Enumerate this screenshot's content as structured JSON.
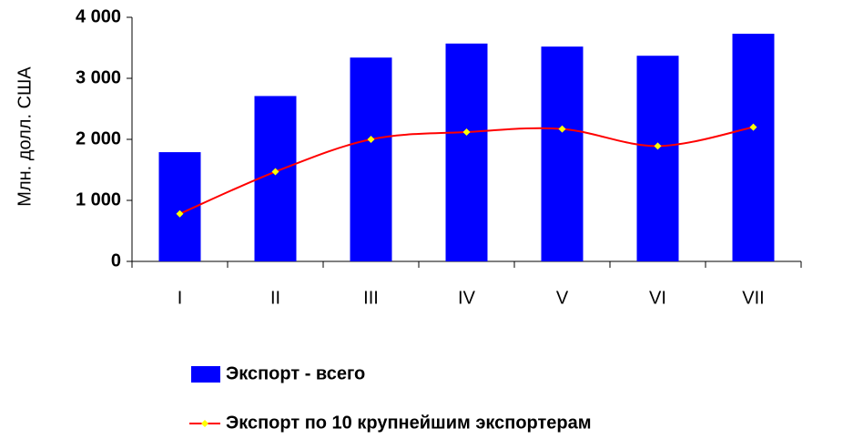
{
  "chart_data": {
    "type": "bar",
    "y_label": "Млн. долл. США",
    "categories": [
      "I",
      "II",
      "III",
      "IV",
      "V",
      "VI",
      "VII"
    ],
    "series": [
      {
        "name": "Экспорт - всего",
        "type": "bar",
        "color": "#0000ff",
        "values": [
          1790,
          2710,
          3340,
          3570,
          3520,
          3370,
          3730
        ]
      },
      {
        "name": "Экспорт по 10 крупнейшим экспортерам",
        "type": "line",
        "color": "#ff0000",
        "marker_color": "#ffff00",
        "values": [
          780,
          1470,
          2000,
          2120,
          2170,
          1890,
          2200
        ]
      }
    ],
    "ylim": [
      0,
      4000
    ],
    "yticks": [
      0,
      {
        "value": 1000,
        "label": "1 000"
      },
      {
        "value": 2000,
        "label": "2 000"
      },
      {
        "value": 3000,
        "label": "3 000"
      },
      {
        "value": 4000,
        "label": "4 000"
      }
    ],
    "grid": false
  }
}
